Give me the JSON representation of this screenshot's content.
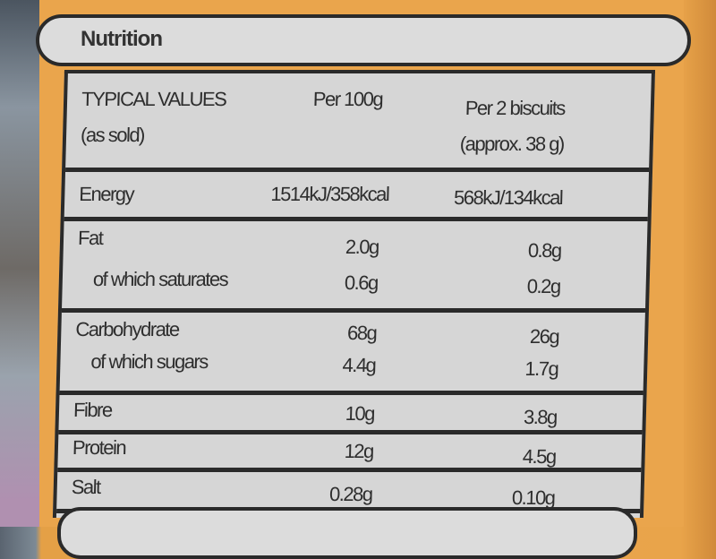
{
  "panel_title": "Nutrition",
  "header": {
    "typical_values": "TYPICAL VALUES",
    "as_sold": "(as sold)",
    "per_100g": "Per 100g",
    "per_serving": "Per 2 biscuits",
    "per_serving_note": "(approx. 38 g)"
  },
  "rows": [
    {
      "label": "Energy",
      "per_100g": "1514kJ/358kcal",
      "per_serving": "568kJ/134kcal"
    },
    {
      "label": "Fat",
      "per_100g": "2.0g",
      "per_serving": "0.8g"
    },
    {
      "label": "of which saturates",
      "per_100g": "0.6g",
      "per_serving": "0.2g"
    },
    {
      "label": "Carbohydrate",
      "per_100g": "68g",
      "per_serving": "26g"
    },
    {
      "label": "of which sugars",
      "per_100g": "4.4g",
      "per_serving": "1.7g"
    },
    {
      "label": "Fibre",
      "per_100g": "10g",
      "per_serving": "3.8g"
    },
    {
      "label": "Protein",
      "per_100g": "12g",
      "per_serving": "4.5g"
    },
    {
      "label": "Salt",
      "per_100g": "0.28g",
      "per_serving": "0.10g"
    }
  ],
  "colors": {
    "packaging": "#eaa54c",
    "panel": "#d6d6d6",
    "ink": "#2a2a2a"
  }
}
